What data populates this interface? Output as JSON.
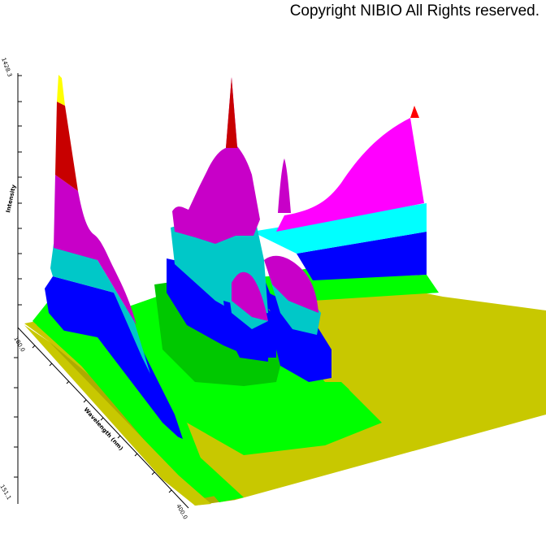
{
  "copyright": "Copyright NIBIO All Rights reserved.",
  "chart_data": {
    "type": "3d-surface",
    "z_axis": {
      "label": "Intensity",
      "max_label": "1428.3"
    },
    "x_axis": {
      "label": "Wavelength (nm)",
      "start_label": "180.0",
      "end_label": "400.0"
    },
    "y_axis": {
      "end_label": "151.1"
    },
    "color_bands": [
      "#c8c800",
      "#00ff00",
      "#0000ff",
      "#00c8c8",
      "#c800c8",
      "#c80000",
      "#ffff00"
    ],
    "peaks": [
      {
        "name": "left-tall",
        "relative_height": 1.0
      },
      {
        "name": "center-tall",
        "relative_height": 0.97
      },
      {
        "name": "right-plateau",
        "relative_height": 0.84
      }
    ]
  }
}
